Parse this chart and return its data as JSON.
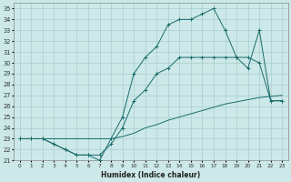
{
  "xlabel": "Humidex (Indice chaleur)",
  "bg_color": "#cce8e8",
  "grid_color": "#aacece",
  "line_color": "#1a6b6b",
  "xlim": [
    -0.5,
    23.5
  ],
  "ylim": [
    21,
    35.5
  ],
  "yticks": [
    21,
    22,
    23,
    24,
    25,
    26,
    27,
    28,
    29,
    30,
    31,
    32,
    33,
    34,
    35
  ],
  "xticks": [
    0,
    1,
    2,
    3,
    4,
    5,
    6,
    7,
    8,
    9,
    10,
    11,
    12,
    13,
    14,
    15,
    16,
    17,
    18,
    19,
    20,
    21,
    22,
    23
  ],
  "line1_x": [
    0,
    1,
    2,
    3,
    4,
    5,
    6,
    7,
    8,
    9,
    10,
    11,
    12,
    13,
    14,
    15,
    16,
    17,
    18,
    19,
    20,
    21,
    22,
    23
  ],
  "line1_y": [
    23.0,
    23.0,
    23.0,
    23.0,
    23.0,
    23.0,
    23.0,
    23.0,
    23.0,
    23.2,
    23.5,
    24.0,
    24.3,
    24.7,
    25.0,
    25.3,
    25.6,
    25.9,
    26.2,
    26.4,
    26.6,
    26.8,
    26.9,
    27.0
  ],
  "line2_x": [
    0,
    1,
    2,
    3,
    4,
    5,
    6,
    7,
    8,
    9,
    10,
    11,
    12,
    13,
    14,
    15,
    16,
    17,
    18,
    19,
    20,
    21,
    22,
    23
  ],
  "line2_y": [
    23.0,
    23.0,
    23.0,
    22.5,
    22.0,
    21.5,
    21.5,
    21.5,
    22.5,
    24.0,
    26.5,
    27.5,
    29.0,
    29.5,
    30.5,
    30.5,
    30.5,
    30.5,
    30.5,
    30.5,
    30.5,
    30.0,
    26.5,
    26.5
  ],
  "line3_x": [
    0,
    1,
    2,
    3,
    4,
    5,
    6,
    7,
    8,
    9,
    10,
    11,
    12,
    13,
    14,
    15,
    16,
    17,
    18,
    19,
    20,
    21,
    22,
    23
  ],
  "line3_y": [
    23.0,
    23.0,
    23.0,
    22.5,
    22.0,
    21.5,
    21.5,
    21.0,
    23.0,
    25.0,
    29.0,
    30.5,
    31.5,
    33.5,
    34.0,
    34.0,
    34.5,
    35.0,
    33.0,
    30.5,
    29.5,
    33.0,
    26.5,
    26.5
  ],
  "marker_x3": [
    0,
    1,
    2,
    3,
    5,
    7,
    8,
    9,
    10,
    12,
    14,
    15,
    16,
    17,
    18,
    20,
    22,
    23
  ],
  "marker_y3": [
    23.0,
    23.0,
    23.0,
    22.5,
    21.5,
    21.0,
    23.0,
    25.0,
    29.0,
    31.5,
    34.0,
    34.0,
    34.5,
    35.0,
    33.0,
    29.5,
    26.5,
    26.5
  ]
}
